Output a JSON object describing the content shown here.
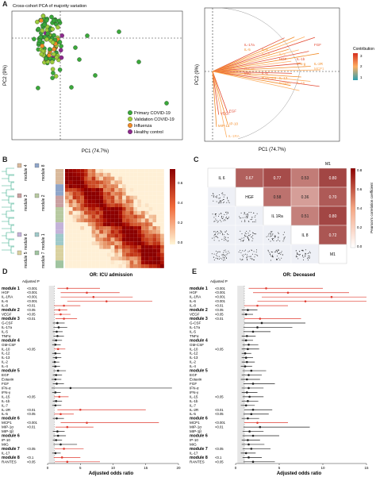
{
  "panels": {
    "a": {
      "label": "A",
      "title": "Cross-cohort PCA of majority variation",
      "xlabel": "PC1 (74.7%)",
      "ylabel": "PC2 (9%)",
      "legend": [
        {
          "name": "Primary COVID-19",
          "color": "#3aa83a"
        },
        {
          "name": "Validation COVID-19",
          "color": "#9ccc3c"
        },
        {
          "name": "Influenza",
          "color": "#f28c28"
        },
        {
          "name": "Healthy control",
          "color": "#8e2a8e"
        }
      ]
    },
    "a2": {
      "xlabel": "PC1 (74.7%)",
      "ylabel": "PC2 (9%)",
      "legend_title": "Contribution",
      "legend_ticks": [
        "3",
        "2",
        "1"
      ],
      "loading_labels": [
        "IL-17a",
        "IL-4",
        "IL-2",
        "IL-1b",
        "IL-2R",
        "G-CSF",
        "IL-6",
        "IL-13",
        "IL-15",
        "FGF",
        "IL-5",
        "IL-10",
        "HGF",
        "IFN-g",
        "MCP1",
        "MIG",
        "RANTES",
        "Eotaxin",
        "EGF",
        "IP-10",
        "IL-1RA",
        "VEGF",
        "MIP-1a"
      ]
    },
    "b": {
      "label": "B",
      "modules": [
        "module 4",
        "module 8",
        "module 3",
        "module 2",
        "module 6",
        "module 1",
        "module 5",
        "module 7"
      ],
      "colorbar_ticks": [
        "0.6",
        "0.4",
        "0.2",
        "0.0"
      ]
    },
    "c": {
      "label": "C",
      "corner": "M1",
      "diag": [
        "IL 6",
        "HGF",
        "IL 1Ra",
        "IL 8",
        "M1"
      ],
      "values": [
        [
          "0.67",
          "0.77",
          "0.53",
          "0.80"
        ],
        [
          "0.58",
          "0.36",
          "0.70"
        ],
        [
          "0.51",
          "0.80"
        ],
        [
          "0.72"
        ]
      ],
      "colorbar_label": "Pearson's correlation coefficient",
      "colorbar_ticks": [
        "0.8",
        "0.6",
        "0.4",
        "0.2",
        "0.0"
      ]
    },
    "d": {
      "label": "D",
      "title": "OR: ICU admission",
      "adj_p": "Adjusted P",
      "xlabel": "Adjusted odds ratio",
      "xticks": [
        "0",
        "5",
        "10",
        "15",
        "20"
      ]
    },
    "e": {
      "label": "E",
      "title": "OR: Deceased",
      "adj_p": "Adjusted P",
      "xlabel": "Adjusted odds ratio",
      "xticks": [
        "0",
        "5",
        "10",
        "15"
      ]
    }
  },
  "forest_rows": [
    {
      "label": "module 1",
      "bold": true,
      "p": "<0.001"
    },
    {
      "label": "HGF",
      "p": "<0.001"
    },
    {
      "label": "IL-1RA",
      "p": "<0.001"
    },
    {
      "label": "IL-6",
      "p": "<0.001"
    },
    {
      "label": "IL-8",
      "p": "<0.01"
    },
    {
      "label": "module 2",
      "bold": true,
      "p": "<0.05"
    },
    {
      "label": "VEGF",
      "p": "<0.05"
    },
    {
      "label": "module 3",
      "bold": true,
      "p": "<0.01"
    },
    {
      "label": "G-CSF",
      "p": ""
    },
    {
      "label": "IL-17a",
      "p": ""
    },
    {
      "label": "IL-5",
      "p": ""
    },
    {
      "label": "TNFα",
      "p": ""
    },
    {
      "label": "module 4",
      "bold": true,
      "p": ""
    },
    {
      "label": "GM-CSF",
      "p": ""
    },
    {
      "label": "IL-10",
      "p": "<0.05"
    },
    {
      "label": "IL-12",
      "p": ""
    },
    {
      "label": "IL-13",
      "p": ""
    },
    {
      "label": "IL-2",
      "p": ""
    },
    {
      "label": "IL-4",
      "p": ""
    },
    {
      "label": "module 5",
      "bold": true,
      "p": ""
    },
    {
      "label": "EGF",
      "p": ""
    },
    {
      "label": "Eotaxin",
      "p": ""
    },
    {
      "label": "FGF",
      "p": ""
    },
    {
      "label": "IFN-α",
      "p": ""
    },
    {
      "label": "IFN-γ",
      "p": ""
    },
    {
      "label": "IL-15",
      "p": "<0.05"
    },
    {
      "label": "IL-1b",
      "p": ""
    },
    {
      "label": "IL-7",
      "p": ""
    },
    {
      "label": "IL-2R",
      "p": "<0.01"
    },
    {
      "label": "IL-5",
      "p": "<0.05"
    },
    {
      "label": "module 6",
      "bold": true,
      "p": ""
    },
    {
      "label": "MCP1",
      "p": "<0.001"
    },
    {
      "label": "MIP-1α",
      "p": "<0.01"
    },
    {
      "label": "MIP-1β",
      "p": ""
    },
    {
      "label": "module 6",
      "bold": true,
      "p": ""
    },
    {
      "label": "IP-10",
      "p": ""
    },
    {
      "label": "MIG",
      "p": ""
    },
    {
      "label": "module 7",
      "bold": true,
      "p": "<0.05"
    },
    {
      "label": "IL-17",
      "p": ""
    },
    {
      "label": "module 8",
      "bold": true,
      "p": "<0.1"
    },
    {
      "label": "RANTES",
      "p": "<0.05"
    }
  ],
  "forest_d": [
    [
      3,
      1.5,
      8,
      1
    ],
    [
      6,
      2,
      11,
      1
    ],
    [
      7,
      2,
      13,
      1
    ],
    [
      9,
      3,
      16,
      1
    ],
    [
      2.5,
      1,
      5,
      1
    ],
    [
      1.8,
      1,
      3,
      1
    ],
    [
      2,
      1,
      3.5,
      1
    ],
    [
      2.5,
      1.2,
      4.5,
      1
    ],
    [
      1.5,
      0.8,
      2.6,
      0
    ],
    [
      1.7,
      0.9,
      3,
      0
    ],
    [
      1.4,
      0.8,
      2.3,
      0
    ],
    [
      1.5,
      0.9,
      2.5,
      0
    ],
    [
      1.3,
      0.7,
      2.2,
      0
    ],
    [
      1.2,
      0.7,
      2,
      0
    ],
    [
      1.6,
      1,
      2.7,
      1
    ],
    [
      1.2,
      0.7,
      2,
      0
    ],
    [
      1.3,
      0.8,
      2.1,
      0
    ],
    [
      1.1,
      0.7,
      1.8,
      0
    ],
    [
      1.2,
      0.7,
      1.9,
      0
    ],
    [
      1.6,
      0.9,
      2.8,
      0
    ],
    [
      1.3,
      0.8,
      2.2,
      0
    ],
    [
      1.2,
      0.6,
      2.1,
      0
    ],
    [
      1.4,
      0.8,
      2.5,
      0
    ],
    [
      3.5,
      0.6,
      19,
      0
    ],
    [
      1.2,
      0.7,
      2,
      0
    ],
    [
      1.8,
      1,
      3.2,
      1
    ],
    [
      1.3,
      0.8,
      2.2,
      0
    ],
    [
      1.2,
      0.7,
      2.1,
      0
    ],
    [
      5,
      1.5,
      15,
      1
    ],
    [
      2,
      1,
      4,
      1
    ],
    [
      1.4,
      0.8,
      2.5,
      0
    ],
    [
      6,
      2,
      17,
      1
    ],
    [
      3,
      1.2,
      7,
      1
    ],
    [
      1.5,
      0.8,
      2.6,
      0
    ],
    [
      1.6,
      0.9,
      2.8,
      0
    ],
    [
      1.3,
      0.8,
      2.2,
      0
    ],
    [
      2,
      0.9,
      4.5,
      0
    ],
    [
      2.5,
      1.1,
      5.5,
      1
    ],
    [
      1.2,
      0.7,
      2,
      0
    ],
    [
      2.2,
      0.95,
      5,
      1
    ],
    [
      3,
      1.1,
      8,
      1
    ]
  ],
  "forest_e": [
    [
      3.5,
      1.5,
      10,
      1
    ],
    [
      6,
      2,
      13,
      1
    ],
    [
      11,
      3,
      15,
      1
    ],
    [
      8,
      2.5,
      15,
      1
    ],
    [
      2.5,
      1,
      6,
      1
    ],
    [
      1.4,
      0.7,
      2.5,
      0
    ],
    [
      1.2,
      0.7,
      2,
      0
    ],
    [
      2.8,
      1,
      7.5,
      1
    ],
    [
      3,
      1,
      8,
      0
    ],
    [
      2.5,
      0.9,
      6.5,
      0
    ],
    [
      2,
      0.9,
      4,
      0
    ],
    [
      1.3,
      0.7,
      2.3,
      0
    ],
    [
      1.2,
      0.7,
      2,
      0
    ],
    [
      1.5,
      0.8,
      2.6,
      0
    ],
    [
      1.4,
      0.7,
      2.7,
      0
    ],
    [
      1.1,
      0.7,
      1.8,
      0
    ],
    [
      1.2,
      0.7,
      2,
      0
    ],
    [
      1.3,
      0.7,
      2.2,
      0
    ],
    [
      1.1,
      0.6,
      1.9,
      0
    ],
    [
      1.8,
      0.8,
      3.5,
      0
    ],
    [
      1.5,
      0.7,
      3,
      0
    ],
    [
      1.3,
      0.6,
      2.8,
      0
    ],
    [
      2,
      0.9,
      4.5,
      0
    ],
    [
      1.5,
      0.7,
      3.2,
      0
    ],
    [
      1.3,
      0.7,
      2.5,
      0
    ],
    [
      1.6,
      0.8,
      3.2,
      0
    ],
    [
      1.4,
      0.7,
      2.6,
      0
    ],
    [
      1.2,
      0.6,
      2.2,
      0
    ],
    [
      2,
      1,
      4.2,
      0
    ],
    [
      1.8,
      0.9,
      3.8,
      0
    ],
    [
      1.4,
      0.7,
      2.7,
      0
    ],
    [
      2.5,
      1,
      6,
      1
    ],
    [
      2.8,
      0.9,
      8.5,
      0
    ],
    [
      1.6,
      0.8,
      3.2,
      0
    ],
    [
      2,
      0.8,
      5,
      0
    ],
    [
      1.4,
      0.7,
      2.8,
      0
    ],
    [
      1.5,
      0.7,
      3.3,
      0
    ],
    [
      1.8,
      0.8,
      4,
      0
    ],
    [
      1.2,
      0.6,
      2.3,
      0
    ],
    [
      1.5,
      0.8,
      3,
      0
    ],
    [
      2,
      0.9,
      4.5,
      0
    ]
  ]
}
